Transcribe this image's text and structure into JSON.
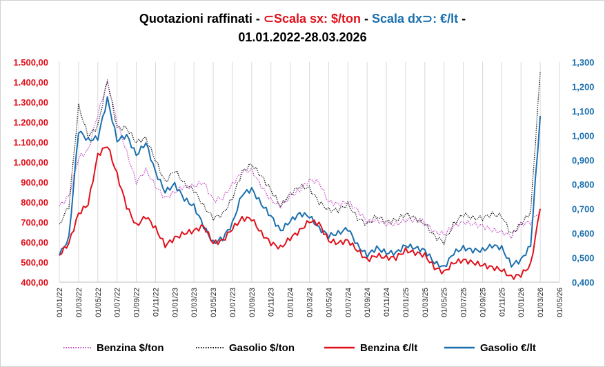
{
  "title": {
    "part1": "Quotazioni raffinati - ",
    "left_symbol": "⊂",
    "left_label": "Scala sx: $/ton",
    "sep": " - ",
    "right_label": "Scala dx",
    "right_symbol": "⊃",
    "right_unit": ": €/lt",
    "part_end": " -",
    "line2": "01.01.2022-28.03.2026"
  },
  "colors": {
    "red": "#e0101a",
    "blue": "#1a6fae",
    "purple": "#c040c0",
    "black": "#111111",
    "grid": "#d9d9d9"
  },
  "chart_data": {
    "type": "line",
    "title": "Quotazioni raffinati - Scala sx: $/ton - Scala dx: €/lt - 01.01.2022-28.03.2026",
    "left_axis": {
      "unit": "$/ton",
      "min": 400,
      "max": 1500,
      "ticks": [
        400,
        500,
        600,
        700,
        800,
        900,
        1000,
        1100,
        1200,
        1300,
        1400,
        1500
      ],
      "tick_labels": [
        "400,00",
        "500,00",
        "600,00",
        "700,00",
        "800,00",
        "900,00",
        "1.000,00",
        "1.100,00",
        "1.200,00",
        "1.300,00",
        "1.400,00",
        "1.500,00"
      ]
    },
    "right_axis": {
      "unit": "€/lt",
      "min": 0.4,
      "max": 1.3,
      "ticks": [
        0.4,
        0.5,
        0.6,
        0.7,
        0.8,
        0.9,
        1.0,
        1.1,
        1.2,
        1.3
      ],
      "tick_labels": [
        "0,400",
        "0,500",
        "0,600",
        "0,700",
        "0,800",
        "0,900",
        "1,000",
        "1,100",
        "1,200",
        "1,300"
      ]
    },
    "x_axis": {
      "start": "2022-01-01",
      "end": "2026-05-01",
      "tick_labels": [
        "01/01/22",
        "01/03/22",
        "01/05/22",
        "01/07/22",
        "01/09/22",
        "01/11/22",
        "01/01/23",
        "01/03/23",
        "01/05/23",
        "01/07/23",
        "01/09/23",
        "01/11/23",
        "01/01/24",
        "01/03/24",
        "01/05/24",
        "01/07/24",
        "01/09/24",
        "01/11/24",
        "01/01/25",
        "01/03/25",
        "01/05/25",
        "01/07/25",
        "01/09/25",
        "01/11/25",
        "01/01/26",
        "01/03/26",
        "01/05/26"
      ]
    },
    "months": [
      "01/22",
      "02/22",
      "03/22",
      "04/22",
      "05/22",
      "06/22",
      "07/22",
      "08/22",
      "09/22",
      "10/22",
      "11/22",
      "12/22",
      "01/23",
      "02/23",
      "03/23",
      "04/23",
      "05/23",
      "06/23",
      "07/23",
      "08/23",
      "09/23",
      "10/23",
      "11/23",
      "12/23",
      "01/24",
      "02/24",
      "03/24",
      "04/24",
      "05/24",
      "06/24",
      "07/24",
      "08/24",
      "09/24",
      "10/24",
      "11/24",
      "12/24",
      "01/25",
      "02/25",
      "03/25",
      "04/25",
      "05/25",
      "06/25",
      "07/25",
      "08/25",
      "09/25",
      "10/25",
      "11/25",
      "12/25",
      "01/26",
      "02/26",
      "03/26"
    ],
    "series": [
      {
        "name": "Benzina $/ton",
        "axis": "left",
        "style": "dotted",
        "color": "#c040c0",
        "values": [
          780,
          830,
          1020,
          1060,
          1240,
          1400,
          1200,
          1050,
          900,
          960,
          880,
          820,
          850,
          880,
          880,
          900,
          810,
          820,
          890,
          950,
          960,
          880,
          810,
          780,
          830,
          860,
          910,
          900,
          800,
          790,
          800,
          760,
          700,
          710,
          690,
          690,
          710,
          710,
          700,
          650,
          640,
          680,
          700,
          690,
          680,
          660,
          650,
          630,
          690,
          700,
          760
        ]
      },
      {
        "name": "Gasolio $/ton",
        "axis": "left",
        "style": "dotted",
        "color": "#111111",
        "values": [
          690,
          780,
          1280,
          1130,
          1180,
          1410,
          1170,
          1170,
          1100,
          1120,
          1010,
          900,
          960,
          890,
          860,
          780,
          720,
          740,
          820,
          950,
          990,
          930,
          860,
          780,
          840,
          880,
          870,
          800,
          760,
          760,
          790,
          720,
          690,
          730,
          700,
          710,
          740,
          720,
          690,
          630,
          600,
          690,
          740,
          720,
          720,
          740,
          730,
          640,
          690,
          750,
          1450
        ]
      },
      {
        "name": "Benzina €/lt",
        "axis": "right",
        "style": "solid",
        "color": "#e0101a",
        "values": [
          0.51,
          0.56,
          0.68,
          0.72,
          0.92,
          0.96,
          0.84,
          0.71,
          0.63,
          0.67,
          0.62,
          0.55,
          0.58,
          0.6,
          0.61,
          0.63,
          0.56,
          0.57,
          0.62,
          0.66,
          0.66,
          0.6,
          0.56,
          0.54,
          0.58,
          0.61,
          0.65,
          0.64,
          0.57,
          0.56,
          0.57,
          0.53,
          0.49,
          0.51,
          0.5,
          0.5,
          0.53,
          0.52,
          0.51,
          0.46,
          0.44,
          0.48,
          0.49,
          0.48,
          0.47,
          0.46,
          0.45,
          0.42,
          0.43,
          0.47,
          0.7
        ]
      },
      {
        "name": "Gasolio €/lt",
        "axis": "right",
        "style": "solid",
        "color": "#1a6fae",
        "values": [
          0.51,
          0.58,
          1.02,
          0.98,
          0.99,
          1.15,
          0.98,
          1.0,
          0.92,
          0.97,
          0.85,
          0.77,
          0.8,
          0.74,
          0.71,
          0.63,
          0.56,
          0.58,
          0.64,
          0.76,
          0.78,
          0.72,
          0.67,
          0.61,
          0.65,
          0.68,
          0.67,
          0.62,
          0.59,
          0.6,
          0.62,
          0.55,
          0.51,
          0.54,
          0.52,
          0.52,
          0.55,
          0.54,
          0.53,
          0.48,
          0.46,
          0.52,
          0.54,
          0.53,
          0.53,
          0.55,
          0.54,
          0.47,
          0.49,
          0.55,
          1.08
        ]
      }
    ],
    "legend_position": "bottom",
    "grid": "vertical"
  }
}
